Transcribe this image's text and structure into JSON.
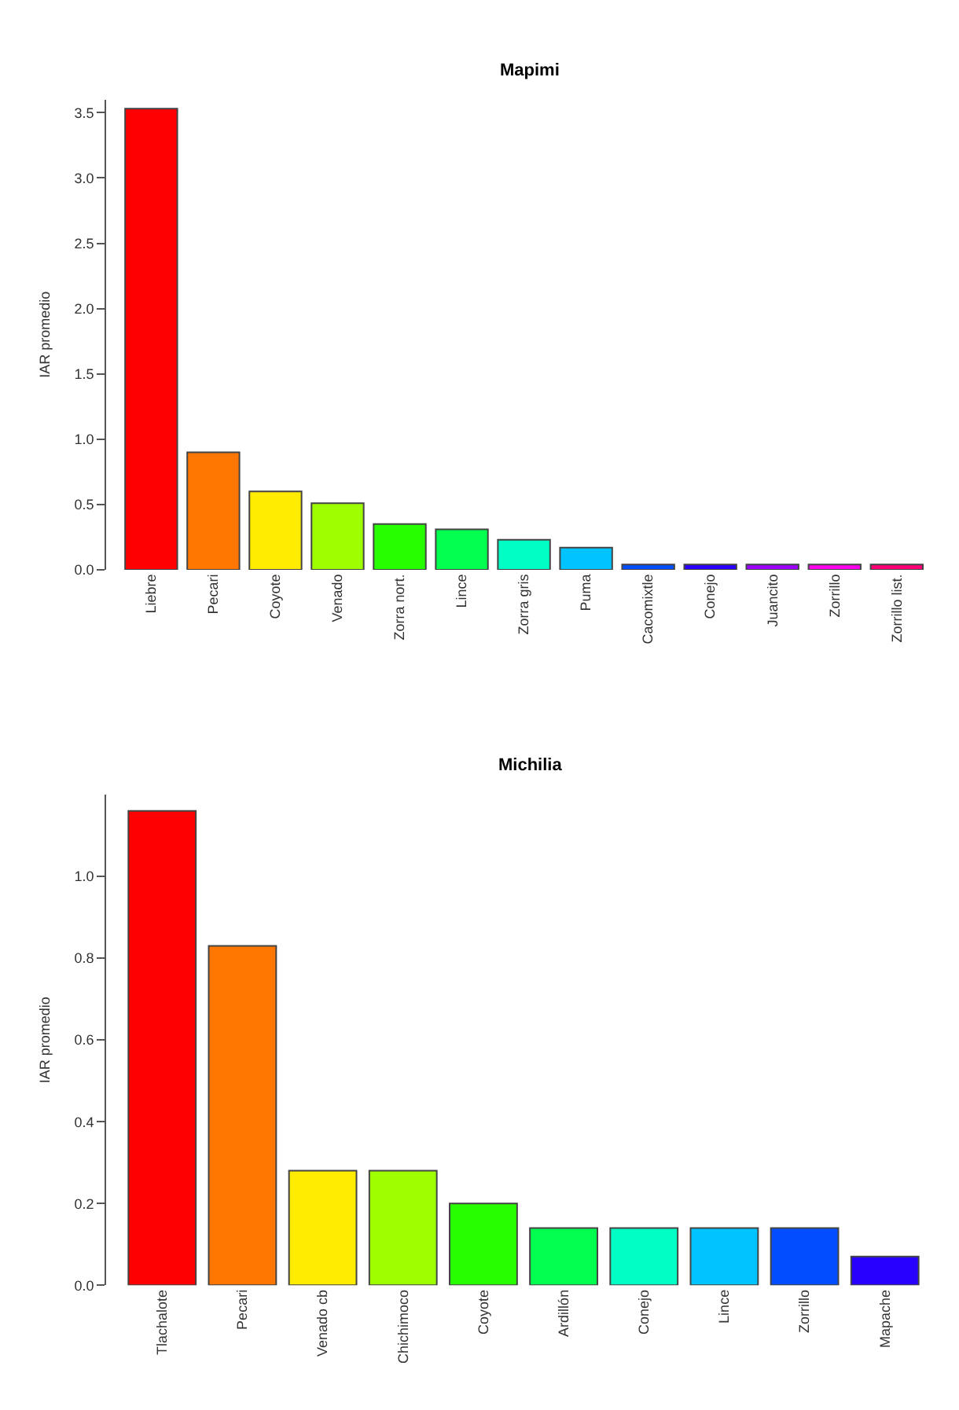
{
  "chart_data": [
    {
      "type": "bar",
      "title": "Mapimi",
      "ylabel": "IAR promedio",
      "categories": [
        "Liebre",
        "Pecari",
        "Coyote",
        "Venado",
        "Zorra nort.",
        "Lince",
        "Zorra gris",
        "Puma",
        "Cacomixtle",
        "Conejo",
        "Juancito",
        "Zorrillo",
        "Zorrillo list."
      ],
      "values": [
        3.53,
        0.9,
        0.6,
        0.51,
        0.35,
        0.31,
        0.23,
        0.17,
        0.04,
        0.04,
        0.04,
        0.04,
        0.04
      ],
      "colors": [
        "#ff0000",
        "#ff7600",
        "#ffec00",
        "#9dff00",
        "#27ff00",
        "#00ff4e",
        "#00ffc4",
        "#00c4ff",
        "#004eff",
        "#2700ff",
        "#9d00ff",
        "#ff00ec",
        "#ff0076"
      ],
      "ylim": [
        0,
        3.6
      ],
      "yticks": [
        {
          "value": 0,
          "label": "0.0"
        },
        {
          "value": 0.5,
          "label": "0.5"
        },
        {
          "value": 1,
          "label": "1.0"
        },
        {
          "value": 1.5,
          "label": "1.5"
        },
        {
          "value": 2,
          "label": "2.0"
        },
        {
          "value": 2.5,
          "label": "2.5"
        },
        {
          "value": 3,
          "label": "3.0"
        },
        {
          "value": 3.5,
          "label": "3.5"
        }
      ]
    },
    {
      "type": "bar",
      "title": "Michilia",
      "ylabel": "IAR promedio",
      "categories": [
        "Tlachalote",
        "Pecari",
        "Venado cb",
        "Chichimoco",
        "Coyote",
        "Ardillón",
        "Conejo",
        "Lince",
        "Zorrillo",
        "Mapache"
      ],
      "values": [
        1.16,
        0.83,
        0.28,
        0.28,
        0.2,
        0.14,
        0.14,
        0.14,
        0.14,
        0.07
      ],
      "colors": [
        "#ff0000",
        "#ff7600",
        "#ffec00",
        "#9dff00",
        "#27ff00",
        "#00ff4e",
        "#00ffc4",
        "#00c4ff",
        "#004eff",
        "#2700ff"
      ],
      "ylim": [
        0,
        1.2
      ],
      "yticks": [
        {
          "value": 0,
          "label": "0.0"
        },
        {
          "value": 0.2,
          "label": "0.2"
        },
        {
          "value": 0.4,
          "label": "0.4"
        },
        {
          "value": 0.6,
          "label": "0.6"
        },
        {
          "value": 0.8,
          "label": "0.8"
        },
        {
          "value": 1,
          "label": "1.0"
        }
      ]
    }
  ]
}
